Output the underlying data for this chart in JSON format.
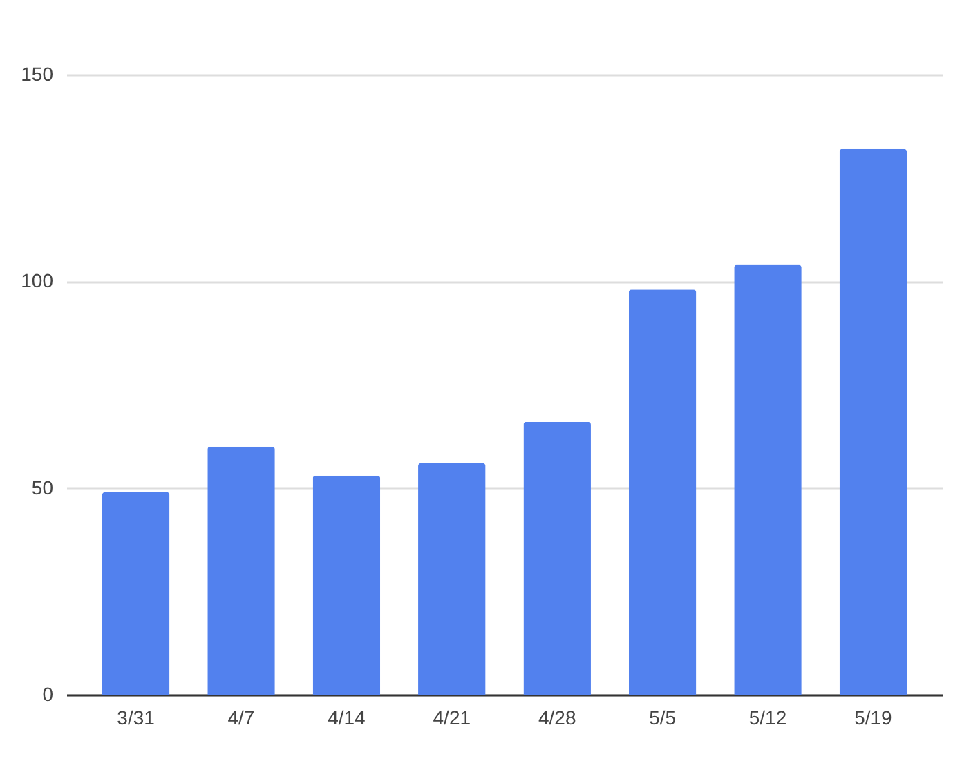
{
  "chart_data": {
    "type": "bar",
    "categories": [
      "3/31",
      "4/7",
      "4/14",
      "4/21",
      "4/28",
      "5/5",
      "5/12",
      "5/19"
    ],
    "values": [
      49,
      60,
      53,
      56,
      66,
      98,
      104,
      132
    ],
    "color": "#5281ee",
    "ylim": [
      0,
      150
    ],
    "yticks": [
      0,
      50,
      100,
      150
    ],
    "grid": "y"
  }
}
